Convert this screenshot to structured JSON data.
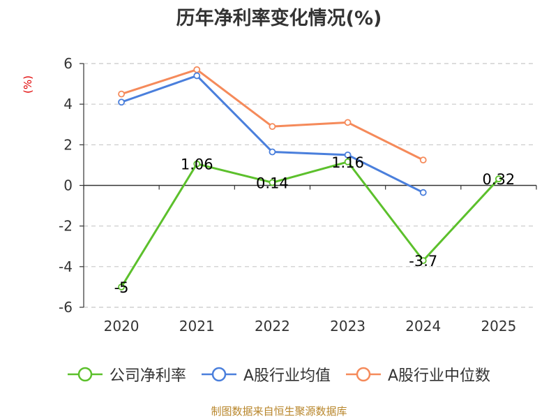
{
  "chart_data": {
    "type": "line",
    "title": "历年净利率变化情况(%)",
    "ylabel": "(%)",
    "xlabel": "",
    "categories": [
      "2020",
      "2021",
      "2022",
      "2023",
      "2024",
      "2025"
    ],
    "ylim": [
      -6,
      6
    ],
    "yticks": [
      6,
      4,
      2,
      0,
      -2,
      -4,
      -6
    ],
    "ytick_labels": [
      "6",
      "4",
      "2",
      "0",
      "-2",
      "-4",
      "-6"
    ],
    "grid": true,
    "legend_position": "bottom",
    "series": [
      {
        "name": "公司净利率",
        "color": "#5cc02c",
        "values": [
          -5,
          1.06,
          0.14,
          1.16,
          -3.7,
          0.32
        ],
        "labels": [
          "-5",
          "1.06",
          "0.14",
          "1.16",
          "-3.7",
          "0.32"
        ]
      },
      {
        "name": "A股行业均值",
        "color": "#4a7fdc",
        "values": [
          4.1,
          5.4,
          1.65,
          1.5,
          -0.35,
          null
        ]
      },
      {
        "name": "A股行业中位数",
        "color": "#f58a5a",
        "values": [
          4.5,
          5.7,
          2.9,
          3.1,
          1.25,
          null
        ]
      }
    ]
  },
  "source_text": "制图数据来自恒生聚源数据库"
}
